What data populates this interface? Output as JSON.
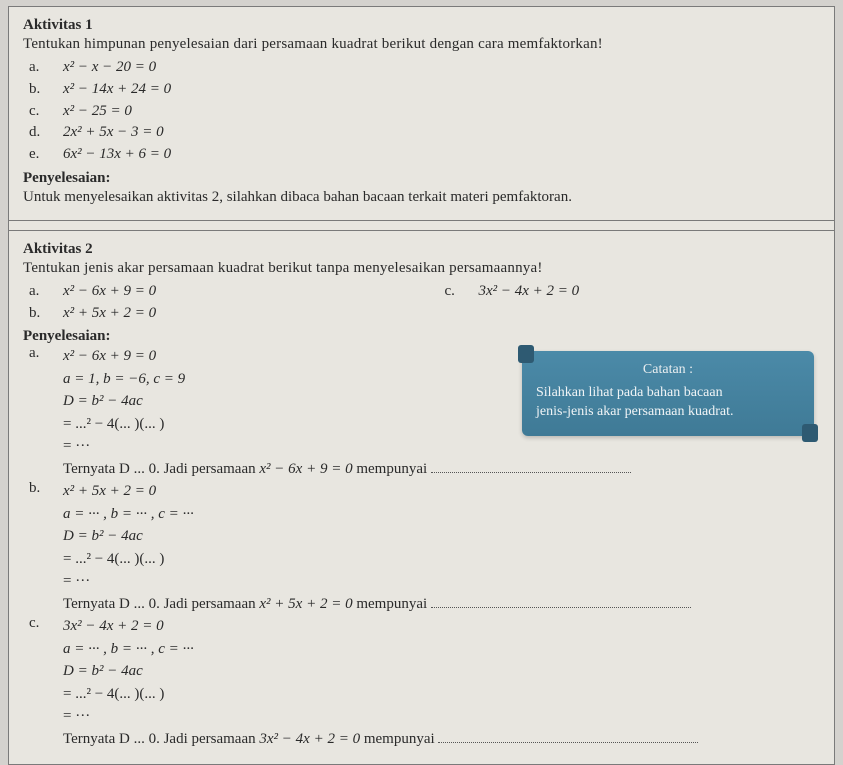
{
  "act1": {
    "title": "Aktivitas 1",
    "prompt": "Tentukan himpunan penyelesaian dari persamaan kuadrat berikut dengan cara memfaktorkan!",
    "items": [
      {
        "label": "a.",
        "eq": "x² − x − 20 = 0"
      },
      {
        "label": "b.",
        "eq": "x² − 14x + 24 = 0"
      },
      {
        "label": "c.",
        "eq": "x² − 25 = 0"
      },
      {
        "label": "d.",
        "eq": "2x² + 5x − 3 = 0"
      },
      {
        "label": "e.",
        "eq": "6x² − 13x + 6 = 0"
      }
    ],
    "subhead": "Penyelesaian:",
    "note": "Untuk menyelesaikan aktivitas 2, silahkan dibaca bahan bacaan terkait materi pemfaktoran."
  },
  "act2": {
    "title": "Aktivitas 2",
    "prompt": "Tentukan jenis akar persamaan kuadrat berikut tanpa menyelesaikan persamaannya!",
    "qa": {
      "label": "a.",
      "eq": "x² − 6x + 9 = 0"
    },
    "qb": {
      "label": "b.",
      "eq": "x² + 5x + 2 = 0"
    },
    "qc": {
      "label": "c.",
      "eq": "3x² − 4x + 2 = 0"
    },
    "subhead": "Penyelesaian:",
    "callout": {
      "title": "Catatan :",
      "l1": "Silahkan lihat pada bahan bacaan",
      "l2": "jenis-jenis akar persamaan kuadrat."
    },
    "sol_a": {
      "label": "a.",
      "l1": "x² − 6x + 9 = 0",
      "l2": "a = 1, b = −6, c = 9",
      "l3": "D = b² − 4ac",
      "l4": "= ...² − 4(... )(... )",
      "l5": "= ···",
      "l6a": "Ternyata D ... 0. Jadi persamaan ",
      "l6b": "x² − 6x + 9 = 0",
      "l6c": " mempunyai "
    },
    "sol_b": {
      "label": "b.",
      "l1": "x² + 5x + 2 = 0",
      "l2": "a = ··· , b = ··· , c = ···",
      "l3": "D = b² − 4ac",
      "l4": "= ...² − 4(... )(... )",
      "l5": "= ···",
      "l6a": "Ternyata D ... 0. Jadi persamaan ",
      "l6b": "x² + 5x + 2 = 0",
      "l6c": " mempunyai "
    },
    "sol_c": {
      "label": "c.",
      "l1": "3x² − 4x + 2 = 0",
      "l2": "a = ··· , b = ··· , c = ···",
      "l3": "D = b² − 4ac",
      "l4": "= ...² − 4(... )(... )",
      "l5": "= ···",
      "l6a": "Ternyata D ... 0. Jadi persamaan ",
      "l6b": "3x² − 4x + 2 = 0",
      "l6c": " mempunyai "
    }
  },
  "style": {
    "bg": "#e8e6e0",
    "callout_bg": "#4b8aa8",
    "text_color": "#2a2a2a",
    "font_size": 15
  }
}
